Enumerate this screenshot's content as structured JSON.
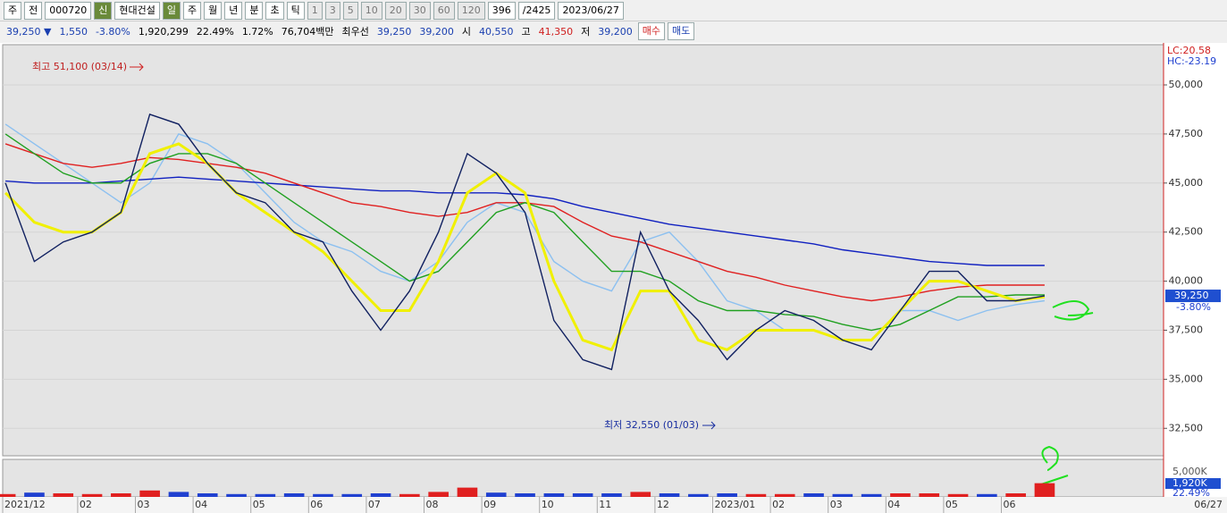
{
  "toolbar": {
    "row1": [
      "주",
      "전",
      "000720",
      "신",
      "현대건설",
      "일",
      "주",
      "월",
      "년",
      "분",
      "초",
      "틱",
      "1",
      "3",
      "5",
      "10",
      "20",
      "30",
      "60",
      "120",
      "396",
      "/2425",
      "2023/06/27"
    ],
    "row2": [
      "39,250 ▼",
      "1,550",
      "-3.80%",
      "1,920,299",
      "22.49%",
      "1.72%",
      "76,704백만",
      "최우선",
      "39,250",
      "39,200",
      "시",
      "40,550",
      "고",
      "41,350",
      "저",
      "39,200",
      "매수",
      "매도"
    ]
  },
  "chart_data": {
    "type": "line",
    "categories": [
      "2021/12",
      null,
      null,
      "02",
      null,
      "03",
      null,
      "04",
      null,
      "05",
      null,
      "06",
      null,
      "07",
      null,
      "08",
      null,
      "09",
      null,
      "10",
      null,
      "11",
      null,
      "12",
      null,
      "2023/01",
      null,
      "02",
      null,
      "03",
      null,
      "04",
      null,
      "05",
      null,
      "06",
      null
    ],
    "x_end_label": "06/27",
    "ylim": [
      31100,
      52050
    ],
    "yticks": [
      {
        "value": 32500,
        "label": "32,500"
      },
      {
        "value": 35000,
        "label": "35,000"
      },
      {
        "value": 37500,
        "label": "37,500"
      },
      {
        "value": 40000,
        "label": "40,000"
      },
      {
        "value": 42500,
        "label": "42,500"
      },
      {
        "value": 45000,
        "label": "45,000"
      },
      {
        "value": 47500,
        "label": "47,500"
      },
      {
        "value": 50000,
        "label": "50,000"
      }
    ],
    "grid": true,
    "series": [
      {
        "color": "#8cc0f0",
        "values": [
          48000,
          47000,
          46000,
          45000,
          44000,
          45000,
          47500,
          47000,
          46000,
          44500,
          43000,
          42000,
          41500,
          40500,
          40000,
          41000,
          43000,
          44000,
          43500,
          41000,
          40000,
          39500,
          42000,
          42500,
          41000,
          39000,
          38500,
          37500,
          37500,
          37000,
          37000,
          38500,
          38500,
          38000,
          38500,
          38800,
          39000
        ]
      },
      {
        "color": "#1020c0",
        "values": [
          45100,
          45000,
          45000,
          45000,
          45100,
          45200,
          45300,
          45200,
          45100,
          45000,
          44900,
          44800,
          44700,
          44600,
          44600,
          44500,
          44500,
          44500,
          44400,
          44200,
          43800,
          43500,
          43200,
          42900,
          42700,
          42500,
          42300,
          42100,
          41900,
          41600,
          41400,
          41200,
          41000,
          40900,
          40800,
          40800,
          40800
        ]
      },
      {
        "color": "#e02020",
        "values": [
          47000,
          46500,
          46000,
          45800,
          46000,
          46300,
          46200,
          46000,
          45800,
          45500,
          45000,
          44500,
          44000,
          43800,
          43500,
          43300,
          43500,
          44000,
          44000,
          43800,
          43000,
          42300,
          42000,
          41500,
          41000,
          40500,
          40200,
          39800,
          39500,
          39200,
          39000,
          39200,
          39500,
          39700,
          39800,
          39800,
          39800
        ]
      },
      {
        "color": "#20a020",
        "values": [
          47500,
          46500,
          45500,
          45000,
          45000,
          46000,
          46500,
          46500,
          46000,
          45000,
          44000,
          43000,
          42000,
          41000,
          40000,
          40500,
          42000,
          43500,
          44000,
          43500,
          42000,
          40500,
          40500,
          40000,
          39000,
          38500,
          38500,
          38300,
          38200,
          37800,
          37500,
          37800,
          38500,
          39200,
          39200,
          39300,
          39300
        ]
      },
      {
        "color": "#f0f000",
        "values": [
          44500,
          43000,
          42500,
          42500,
          43500,
          46500,
          47000,
          46000,
          44500,
          43500,
          42500,
          41500,
          40000,
          38500,
          38500,
          41000,
          44500,
          45500,
          44500,
          40000,
          37000,
          36500,
          39500,
          39500,
          37000,
          36500,
          37500,
          37500,
          37500,
          37000,
          37000,
          38500,
          40000,
          40000,
          39500,
          39000,
          39200
        ]
      },
      {
        "color": "#102060",
        "values": [
          45000,
          41000,
          42000,
          42500,
          43500,
          48500,
          48000,
          46000,
          44500,
          44000,
          42500,
          42000,
          39500,
          37500,
          39500,
          42500,
          46500,
          45500,
          43500,
          38000,
          36000,
          35500,
          42500,
          39500,
          38000,
          36000,
          37500,
          38500,
          38000,
          37000,
          36500,
          38500,
          40500,
          40500,
          39000,
          39000,
          39250
        ]
      }
    ],
    "annotations": {
      "high": "최고 51,100 (03/14)",
      "low": "최저 32,550 (01/03)"
    },
    "lc_label": "LC:20.58",
    "hc_label": "HC:-23.19",
    "last_label": "39,250",
    "last_change": "-3.80%",
    "volume": {
      "ylim": [
        0,
        5000
      ],
      "top_label": "5,000K",
      "last_label": "1,920K",
      "ratio_label": "22.49%",
      "up_color": "#e02020",
      "down_color": "#2040d0",
      "values": [
        400,
        600,
        500,
        400,
        500,
        900,
        700,
        500,
        400,
        400,
        500,
        400,
        400,
        500,
        400,
        700,
        1300,
        600,
        500,
        500,
        500,
        500,
        700,
        500,
        400,
        500,
        400,
        400,
        500,
        400,
        400,
        500,
        500,
        400,
        400,
        500,
        1920
      ]
    }
  }
}
